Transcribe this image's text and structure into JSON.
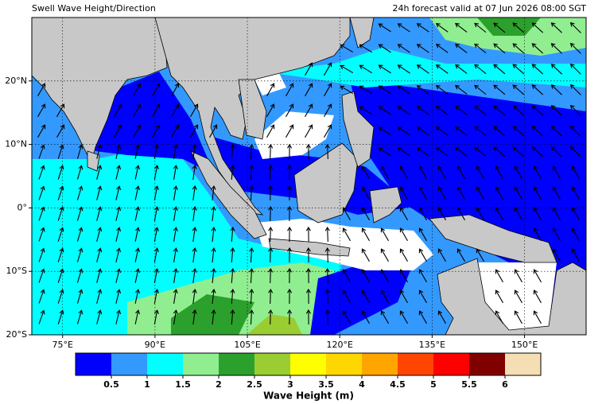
{
  "title": "Swell Wave Height/Direction",
  "subtitle": "24h forecast valid at 07 Jun 2026 08:00 SGT",
  "map": {
    "lon_range": [
      70,
      160
    ],
    "lat_range": [
      -20,
      30
    ],
    "lon_ticks": [
      {
        "value": 75,
        "label": "75°E"
      },
      {
        "value": 90,
        "label": "90°E"
      },
      {
        "value": 105,
        "label": "105°E"
      },
      {
        "value": 120,
        "label": "120°E"
      },
      {
        "value": 135,
        "label": "135°E"
      },
      {
        "value": 150,
        "label": "150°E"
      }
    ],
    "lat_ticks": [
      {
        "value": 20,
        "label": "20°N"
      },
      {
        "value": 10,
        "label": "10°N"
      },
      {
        "value": 0,
        "label": "0°"
      },
      {
        "value": -10,
        "label": "10°S"
      },
      {
        "value": -20,
        "label": "20°S"
      }
    ]
  },
  "colorbar": {
    "label": "Wave Height (m)",
    "range": [
      0,
      6.5
    ],
    "ticks": [
      0.5,
      1,
      1.5,
      2,
      2.5,
      3,
      3.5,
      4,
      4.5,
      5,
      5.5,
      6
    ],
    "colors": [
      "#0000ff",
      "#3399ff",
      "#00ffff",
      "#90ee90",
      "#2ca02c",
      "#9acd32",
      "#ffff00",
      "#ffd700",
      "#ffa500",
      "#ff4500",
      "#ff0000",
      "#800000",
      "#f5deb3"
    ]
  }
}
